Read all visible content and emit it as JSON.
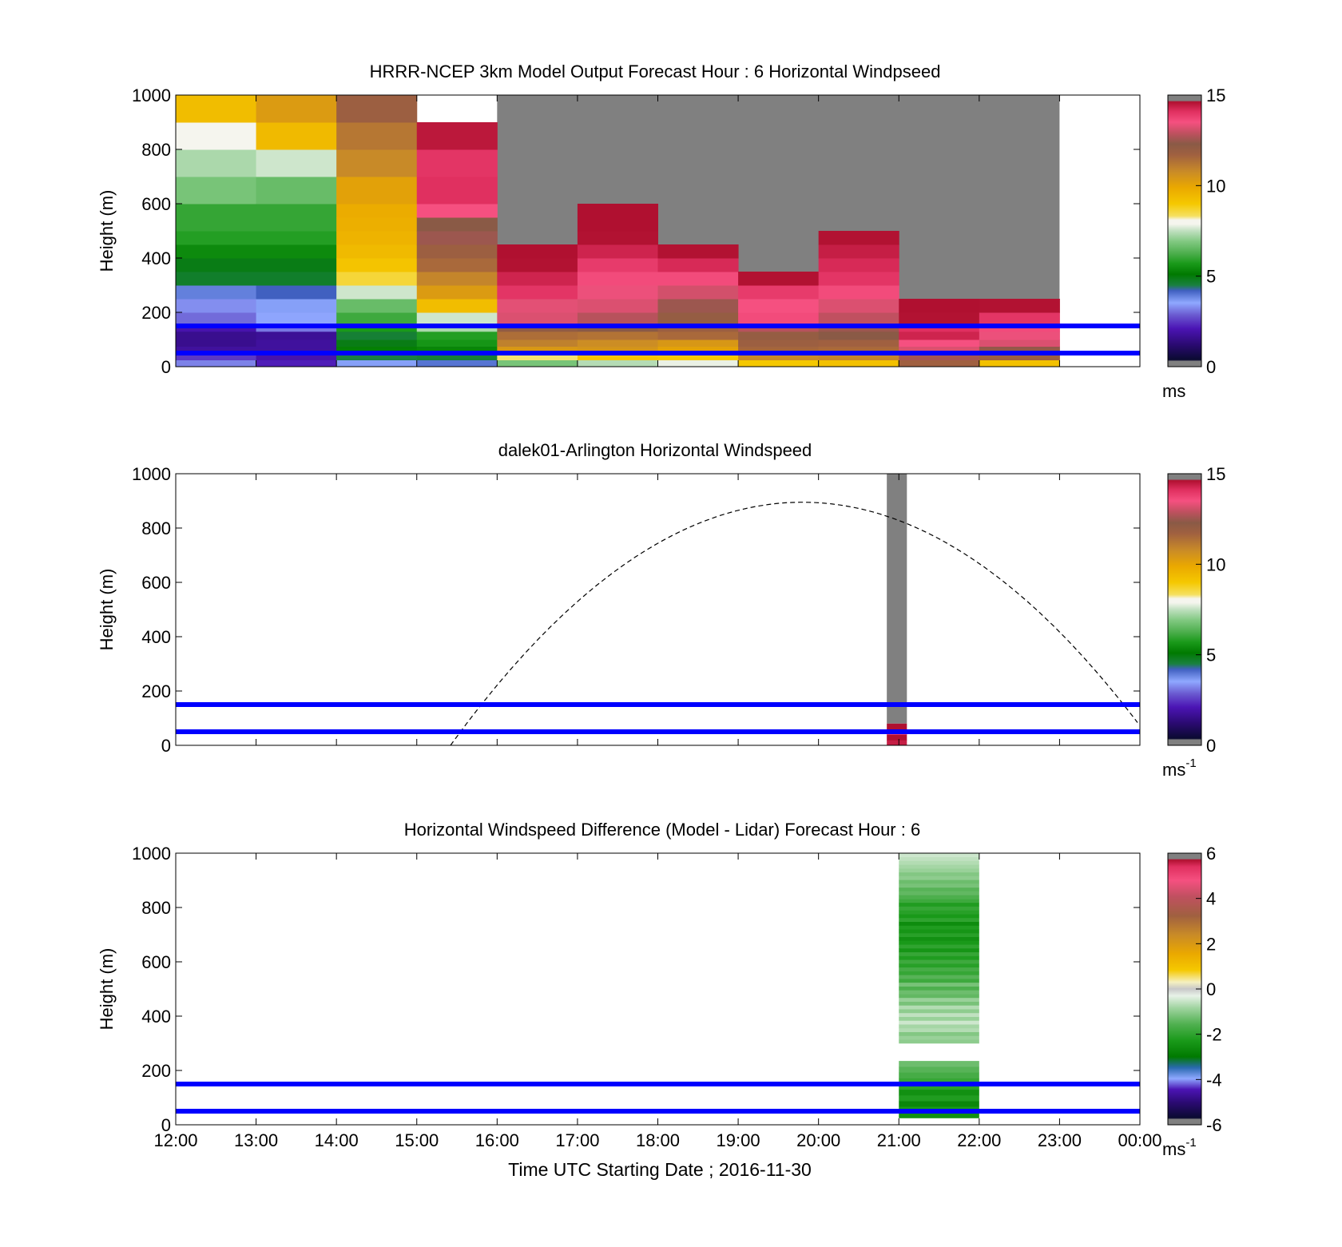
{
  "figure": {
    "xlabel": "Time UTC  Starting Date ; 2016-11-30",
    "x_tick_labels": [
      "12:00",
      "13:00",
      "14:00",
      "15:00",
      "16:00",
      "17:00",
      "18:00",
      "19:00",
      "20:00",
      "21:00",
      "22:00",
      "23:00",
      "00:00"
    ]
  },
  "chart_data": [
    {
      "type": "heatmap",
      "title": "HRRR-NCEP 3km Model Output   Forecast Hour : 6 Horizontal Windpseed",
      "xlabel": "",
      "ylabel": "Height (m)",
      "xlim": [
        12,
        24
      ],
      "ylim": [
        0,
        1000
      ],
      "y_ticks": [
        "0",
        "200",
        "400",
        "600",
        "800",
        "1000"
      ],
      "colorbar": {
        "min": 0,
        "max": 15,
        "ticks": [
          "0",
          "5",
          "10",
          "15"
        ],
        "unit": "ms",
        "unit_sup": ""
      },
      "horizontal_lines_m": [
        50,
        150
      ],
      "line_color": "#0000ff",
      "missing_color": "#808080",
      "columns": [
        {
          "hour": 12,
          "levels": [
            0,
            25,
            50,
            75,
            100,
            130,
            160,
            200,
            250,
            300,
            350,
            400,
            450,
            500,
            550,
            600,
            700,
            800,
            900,
            1000
          ],
          "values": [
            3.2,
            2.5,
            1.8,
            1.6,
            1.6,
            2.0,
            3.0,
            3.3,
            3.9,
            4.7,
            4.9,
            5.4,
            5.8,
            6.0,
            6.0,
            6.8,
            7.3,
            8.0,
            9.3
          ]
        },
        {
          "hour": 13,
          "levels": [
            0,
            25,
            50,
            75,
            100,
            130,
            160,
            200,
            250,
            300,
            350,
            400,
            450,
            500,
            550,
            600,
            700,
            800,
            900,
            1000
          ],
          "values": [
            2.2,
            2.0,
            1.8,
            1.8,
            1.7,
            3.1,
            3.5,
            3.6,
            4.2,
            4.7,
            4.9,
            5.4,
            5.8,
            6.0,
            6.0,
            6.6,
            7.6,
            9.4,
            10.3
          ]
        },
        {
          "hour": 14,
          "levels": [
            0,
            25,
            50,
            75,
            100,
            130,
            160,
            200,
            250,
            300,
            350,
            400,
            450,
            500,
            550,
            600,
            700,
            800,
            900,
            1000
          ],
          "values": [
            3.6,
            4.5,
            5.2,
            4.9,
            4.6,
            5.7,
            6.1,
            6.6,
            7.6,
            8.6,
            9.1,
            9.4,
            9.6,
            9.7,
            9.8,
            10.1,
            10.8,
            11.2,
            11.8
          ]
        },
        {
          "hour": 15,
          "levels": [
            0,
            25,
            50,
            75,
            100,
            130,
            160,
            200,
            250,
            300,
            350,
            400,
            450,
            500,
            550,
            600,
            700,
            800,
            900,
            1000
          ],
          "values": [
            4.0,
            4.6,
            5.3,
            5.6,
            5.8,
            7.3,
            7.6,
            9.3,
            10.3,
            10.9,
            11.5,
            11.8,
            12.5,
            12.3,
            13.5,
            14.1,
            14.0,
            14.5
          ]
        },
        {
          "hour": 16,
          "levels": [
            0,
            25,
            50,
            75,
            100,
            130,
            160,
            200,
            250,
            300,
            350,
            400,
            450
          ],
          "values": [
            6.8,
            8.3,
            10.4,
            11.0,
            11.4,
            12.1,
            13.2,
            13.3,
            14.0,
            14.3,
            14.6,
            14.8
          ]
        },
        {
          "hour": 17,
          "levels": [
            0,
            25,
            50,
            75,
            100,
            130,
            160,
            200,
            250,
            300,
            350,
            400,
            450,
            500,
            550,
            600
          ],
          "values": [
            7.4,
            9.1,
            10.5,
            10.7,
            11.3,
            12.3,
            12.8,
            13.2,
            13.4,
            13.6,
            13.9,
            14.3,
            14.6,
            14.9,
            15.0
          ]
        },
        {
          "hour": 18,
          "levels": [
            0,
            25,
            50,
            75,
            100,
            130,
            160,
            200,
            250,
            300,
            350,
            400,
            450
          ],
          "values": [
            7.8,
            9.0,
            10.1,
            10.4,
            11.5,
            11.8,
            12.0,
            12.5,
            13.1,
            13.6,
            14.2,
            14.6
          ]
        },
        {
          "hour": 19,
          "levels": [
            0,
            25,
            50,
            75,
            100,
            130,
            160,
            200,
            250,
            300,
            350
          ],
          "values": [
            9.0,
            10.8,
            11.6,
            11.8,
            12.0,
            12.8,
            13.6,
            13.5,
            13.9,
            14.6
          ]
        },
        {
          "hour": 20,
          "levels": [
            0,
            25,
            50,
            75,
            100,
            130,
            160,
            200,
            250,
            300,
            350,
            400,
            450,
            500
          ],
          "values": [
            9.2,
            10.9,
            11.5,
            11.7,
            12.3,
            12.5,
            12.9,
            13.2,
            13.6,
            14.0,
            14.2,
            14.4,
            14.6
          ]
        },
        {
          "hour": 21,
          "levels": [
            0,
            25,
            50,
            75,
            100,
            130,
            160,
            200,
            250
          ],
          "values": [
            11.7,
            12.6,
            13.2,
            13.5,
            14.3,
            14.1,
            14.6,
            15.0
          ]
        },
        {
          "hour": 22,
          "levels": [
            0,
            25,
            50,
            75,
            100,
            130,
            160,
            200,
            250
          ],
          "values": [
            9.2,
            11.8,
            12.4,
            13.2,
            13.4,
            13.6,
            14.0,
            14.6
          ]
        }
      ],
      "missing_region": {
        "x0": 16,
        "x1": 23,
        "top": 1000,
        "note": ""
      }
    },
    {
      "type": "heatmap",
      "title": "dalek01-Arlington  Horizontal Windspeed",
      "xlabel": "",
      "ylabel": "Height (m)",
      "xlim": [
        12,
        24
      ],
      "ylim": [
        0,
        1000
      ],
      "y_ticks": [
        "0",
        "200",
        "400",
        "600",
        "800",
        "1000"
      ],
      "colorbar": {
        "min": 0,
        "max": 15,
        "ticks": [
          "0",
          "5",
          "10",
          "15"
        ],
        "unit": "ms",
        "unit_sup": "-1"
      },
      "horizontal_lines_m": [
        50,
        150
      ],
      "line_color": "#0000ff",
      "missing_color": "#808080",
      "lidar_column": {
        "x0": 20.85,
        "x1": 21.1,
        "missing_above": 80,
        "levels": [
          0,
          20,
          40,
          60,
          80
        ],
        "values": [
          14.4,
          14.8,
          13.8,
          15.0
        ]
      },
      "sun_curve": {
        "start_hour": 15.42,
        "peak_hour": 19.8,
        "peak_m": 895,
        "end_hour": 24,
        "end_m": 70,
        "style": "dashed"
      }
    },
    {
      "type": "heatmap",
      "title": "Horizontal Windspeed Difference (Model - Lidar) Forecast Hour : 6",
      "xlabel": "Time UTC  Starting Date ; 2016-11-30",
      "ylabel": "Height (m)",
      "xlim": [
        12,
        24
      ],
      "ylim": [
        0,
        1000
      ],
      "y_ticks": [
        "0",
        "200",
        "400",
        "600",
        "800",
        "1000"
      ],
      "colorbar": {
        "min": -6,
        "max": 6,
        "ticks": [
          "-6",
          "-4",
          "-2",
          "0",
          "2",
          "4",
          "6"
        ],
        "unit": "ms",
        "unit_sup": "-1"
      },
      "horizontal_lines_m": [
        50,
        150
      ],
      "line_color": "#0000ff",
      "diff_column": {
        "x0": 21,
        "x1": 22,
        "segments": [
          {
            "from": 25,
            "to": 235,
            "values": [
              -2.5,
              -2.3,
              -2.7,
              -2.2,
              -2.5,
              -2.1,
              -1.9,
              -1.7,
              -1.5,
              -1.3
            ]
          },
          {
            "from": 300,
            "to": 1000,
            "values": [
              -1.0,
              -0.9,
              -1.1,
              -0.7,
              -0.8,
              -0.5,
              -0.9,
              -0.6,
              -1.0,
              -0.7,
              -1.2,
              -0.9,
              -1.4,
              -1.3,
              -1.6,
              -1.2,
              -1.8,
              -1.5,
              -1.9,
              -1.7,
              -2.1,
              -1.8,
              -2.2,
              -1.9,
              -2.4,
              -2.0,
              -2.3,
              -2.5,
              -2.1,
              -2.4,
              -2.2,
              -2.6,
              -2.0,
              -2.3,
              -2.1,
              -1.9,
              -2.2,
              -1.8,
              -1.6,
              -1.4,
              -1.5,
              -1.2,
              -1.3,
              -1.0,
              -1.1,
              -0.9,
              -0.8,
              -0.7,
              -0.6,
              -0.5
            ]
          }
        ]
      }
    }
  ]
}
